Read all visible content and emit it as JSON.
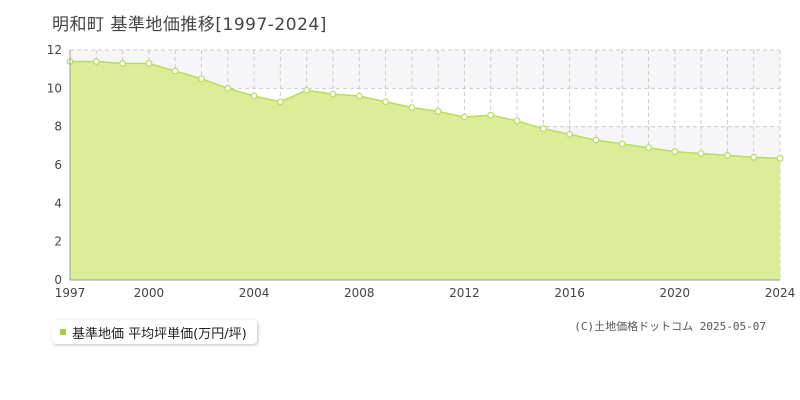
{
  "title": "明和町 基準地価推移[1997-2024]",
  "legend": {
    "label": "基準地価 平均坪単価(万円/坪)",
    "color": "#a3d23a"
  },
  "copyright": "(C)土地価格ドットコム 2025-05-07",
  "colors": {
    "area_fill": "#dbed96",
    "line": "#b9dd5c",
    "marker": "#ffffff",
    "grid": "#cccccc",
    "band": "#f6f6f9"
  },
  "chart_data": {
    "type": "area",
    "x": [
      1997,
      1998,
      1999,
      2000,
      2001,
      2002,
      2003,
      2004,
      2005,
      2006,
      2007,
      2008,
      2009,
      2010,
      2011,
      2012,
      2013,
      2014,
      2015,
      2016,
      2017,
      2018,
      2019,
      2020,
      2021,
      2022,
      2023,
      2024
    ],
    "series": [
      {
        "name": "基準地価 平均坪単価(万円/坪)",
        "values": [
          11.4,
          11.4,
          11.3,
          11.3,
          10.9,
          10.5,
          10.0,
          9.6,
          9.3,
          9.9,
          9.7,
          9.6,
          9.3,
          9.0,
          8.8,
          8.5,
          8.6,
          8.3,
          7.9,
          7.6,
          7.3,
          7.1,
          6.9,
          6.7,
          6.6,
          6.5,
          6.4,
          6.35
        ]
      }
    ],
    "ylim": [
      0,
      12
    ],
    "yticks": [
      0,
      2,
      4,
      6,
      8,
      10,
      12
    ],
    "xticks": [
      1997,
      2000,
      2004,
      2008,
      2012,
      2016,
      2020,
      2024
    ],
    "grid": true,
    "legend_position": "bottom-left"
  }
}
